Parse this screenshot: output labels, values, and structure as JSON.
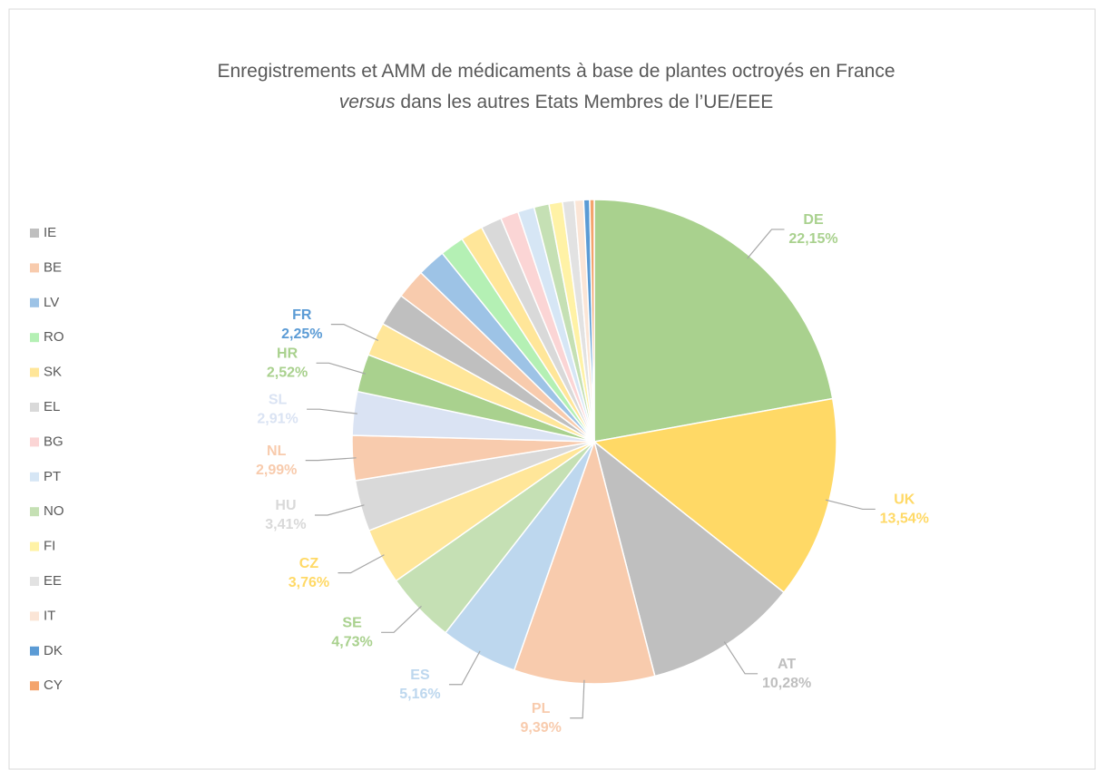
{
  "chart_data": {
    "type": "pie",
    "title": [
      "Enregistrements et AMM de médicaments à base de plantes octroyés en France",
      "versus",
      " dans les autres Etats Membres de l’UE/EEE"
    ],
    "categories": [
      "DE",
      "UK",
      "AT",
      "PL",
      "ES",
      "SE",
      "CZ",
      "HU",
      "NL",
      "SL",
      "HR",
      "FR",
      "IE",
      "BE",
      "LV",
      "RO",
      "SK",
      "EL",
      "BG",
      "PT",
      "NO",
      "FI",
      "EE",
      "IT",
      "DK",
      "CY"
    ],
    "values": [
      22.15,
      13.54,
      10.28,
      9.39,
      5.16,
      4.73,
      3.76,
      3.41,
      2.99,
      2.91,
      2.52,
      2.25,
      2.2,
      2.0,
      1.9,
      1.6,
      1.5,
      1.4,
      1.2,
      1.1,
      1.0,
      0.9,
      0.8,
      0.6,
      0.4,
      0.3
    ],
    "value_labels": [
      "22,15%",
      "13,54%",
      "10,28%",
      "9,39%",
      "5,16%",
      "4,73%",
      "3,76%",
      "3,41%",
      "2,99%",
      "2,91%",
      "2,52%",
      "2,25%",
      null,
      null,
      null,
      null,
      null,
      null,
      null,
      null,
      null,
      null,
      null,
      null,
      null,
      null
    ],
    "colors": [
      "#a9d18e",
      "#ffd966",
      "#bfbfbf",
      "#f8cbad",
      "#bdd7ee",
      "#c5e0b4",
      "#ffe699",
      "#d9d9d9",
      "#f8cbad",
      "#dae3f3",
      "#a9d18e",
      "#ffe699",
      "#bfbfbf",
      "#f8cbad",
      "#9dc3e6",
      "#b4f0b4",
      "#ffe699",
      "#d9d9d9",
      "#fbd5d5",
      "#d6e6f5",
      "#c5e0b4",
      "#fff2a6",
      "#e2e2e2",
      "#fbe5d6",
      "#5b9bd5",
      "#f4a46c"
    ],
    "label_colors": [
      "#a9d18e",
      "#ffd966",
      "#bfbfbf",
      "#f8cbad",
      "#bdd7ee",
      "#a9d18e",
      "#ffd966",
      "#d9d9d9",
      "#f8cbad",
      "#dae3f3",
      "#a9d18e",
      "#5b9bd5",
      null,
      null,
      null,
      null,
      null,
      null,
      null,
      null,
      null,
      null,
      null,
      null,
      null,
      null
    ],
    "legend": "left"
  }
}
